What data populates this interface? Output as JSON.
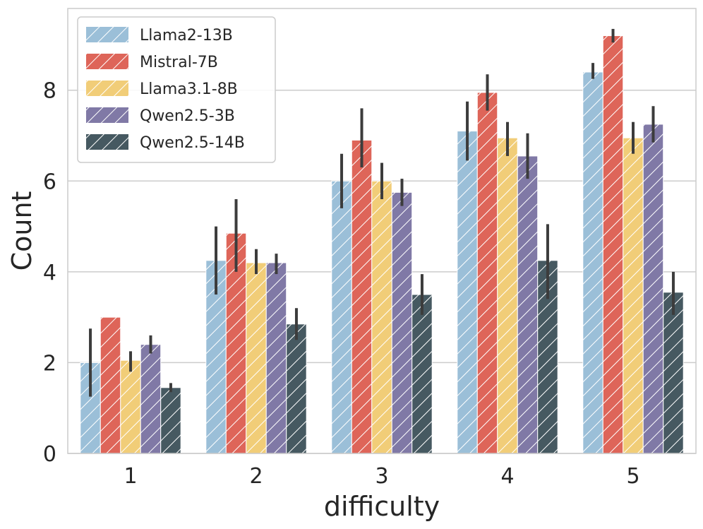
{
  "chart_data": {
    "type": "bar",
    "title": "",
    "xlabel": "difficulty",
    "ylabel": "Count",
    "ylim": [
      0,
      9.8
    ],
    "yticks": [
      0,
      2,
      4,
      6,
      8
    ],
    "grid": "horizontal",
    "legend_position": "top-left",
    "categories": [
      "1",
      "2",
      "3",
      "4",
      "5"
    ],
    "series": [
      {
        "name": "Llama2-13B",
        "color": "#9bbfd8",
        "values": [
          2.0,
          4.25,
          6.0,
          7.1,
          8.4
        ],
        "err_low": [
          1.25,
          3.5,
          5.4,
          6.45,
          8.25
        ],
        "err_high": [
          2.75,
          5.0,
          6.6,
          7.75,
          8.6
        ]
      },
      {
        "name": "Mistral-7B",
        "color": "#de6559",
        "values": [
          3.0,
          4.85,
          6.9,
          7.95,
          9.2
        ],
        "err_low": [
          3.0,
          4.0,
          6.3,
          7.55,
          9.05
        ],
        "err_high": [
          3.0,
          5.6,
          7.6,
          8.35,
          9.35
        ]
      },
      {
        "name": "Llama3.1-8B",
        "color": "#f1cd78",
        "values": [
          2.05,
          4.2,
          6.0,
          6.95,
          6.95
        ],
        "err_low": [
          1.8,
          3.95,
          5.6,
          6.55,
          6.6
        ],
        "err_high": [
          2.25,
          4.5,
          6.4,
          7.3,
          7.3
        ]
      },
      {
        "name": "Qwen2.5-3B",
        "color": "#8079a6",
        "values": [
          2.4,
          4.2,
          5.75,
          6.55,
          7.25
        ],
        "err_low": [
          2.2,
          3.95,
          5.45,
          6.05,
          6.85
        ],
        "err_high": [
          2.6,
          4.4,
          6.05,
          7.05,
          7.65
        ]
      },
      {
        "name": "Qwen2.5-14B",
        "color": "#465961",
        "values": [
          1.45,
          2.85,
          3.5,
          4.25,
          3.55
        ],
        "err_low": [
          1.35,
          2.5,
          3.05,
          3.4,
          3.05
        ],
        "err_high": [
          1.55,
          3.2,
          3.95,
          5.05,
          4.0
        ]
      }
    ]
  }
}
